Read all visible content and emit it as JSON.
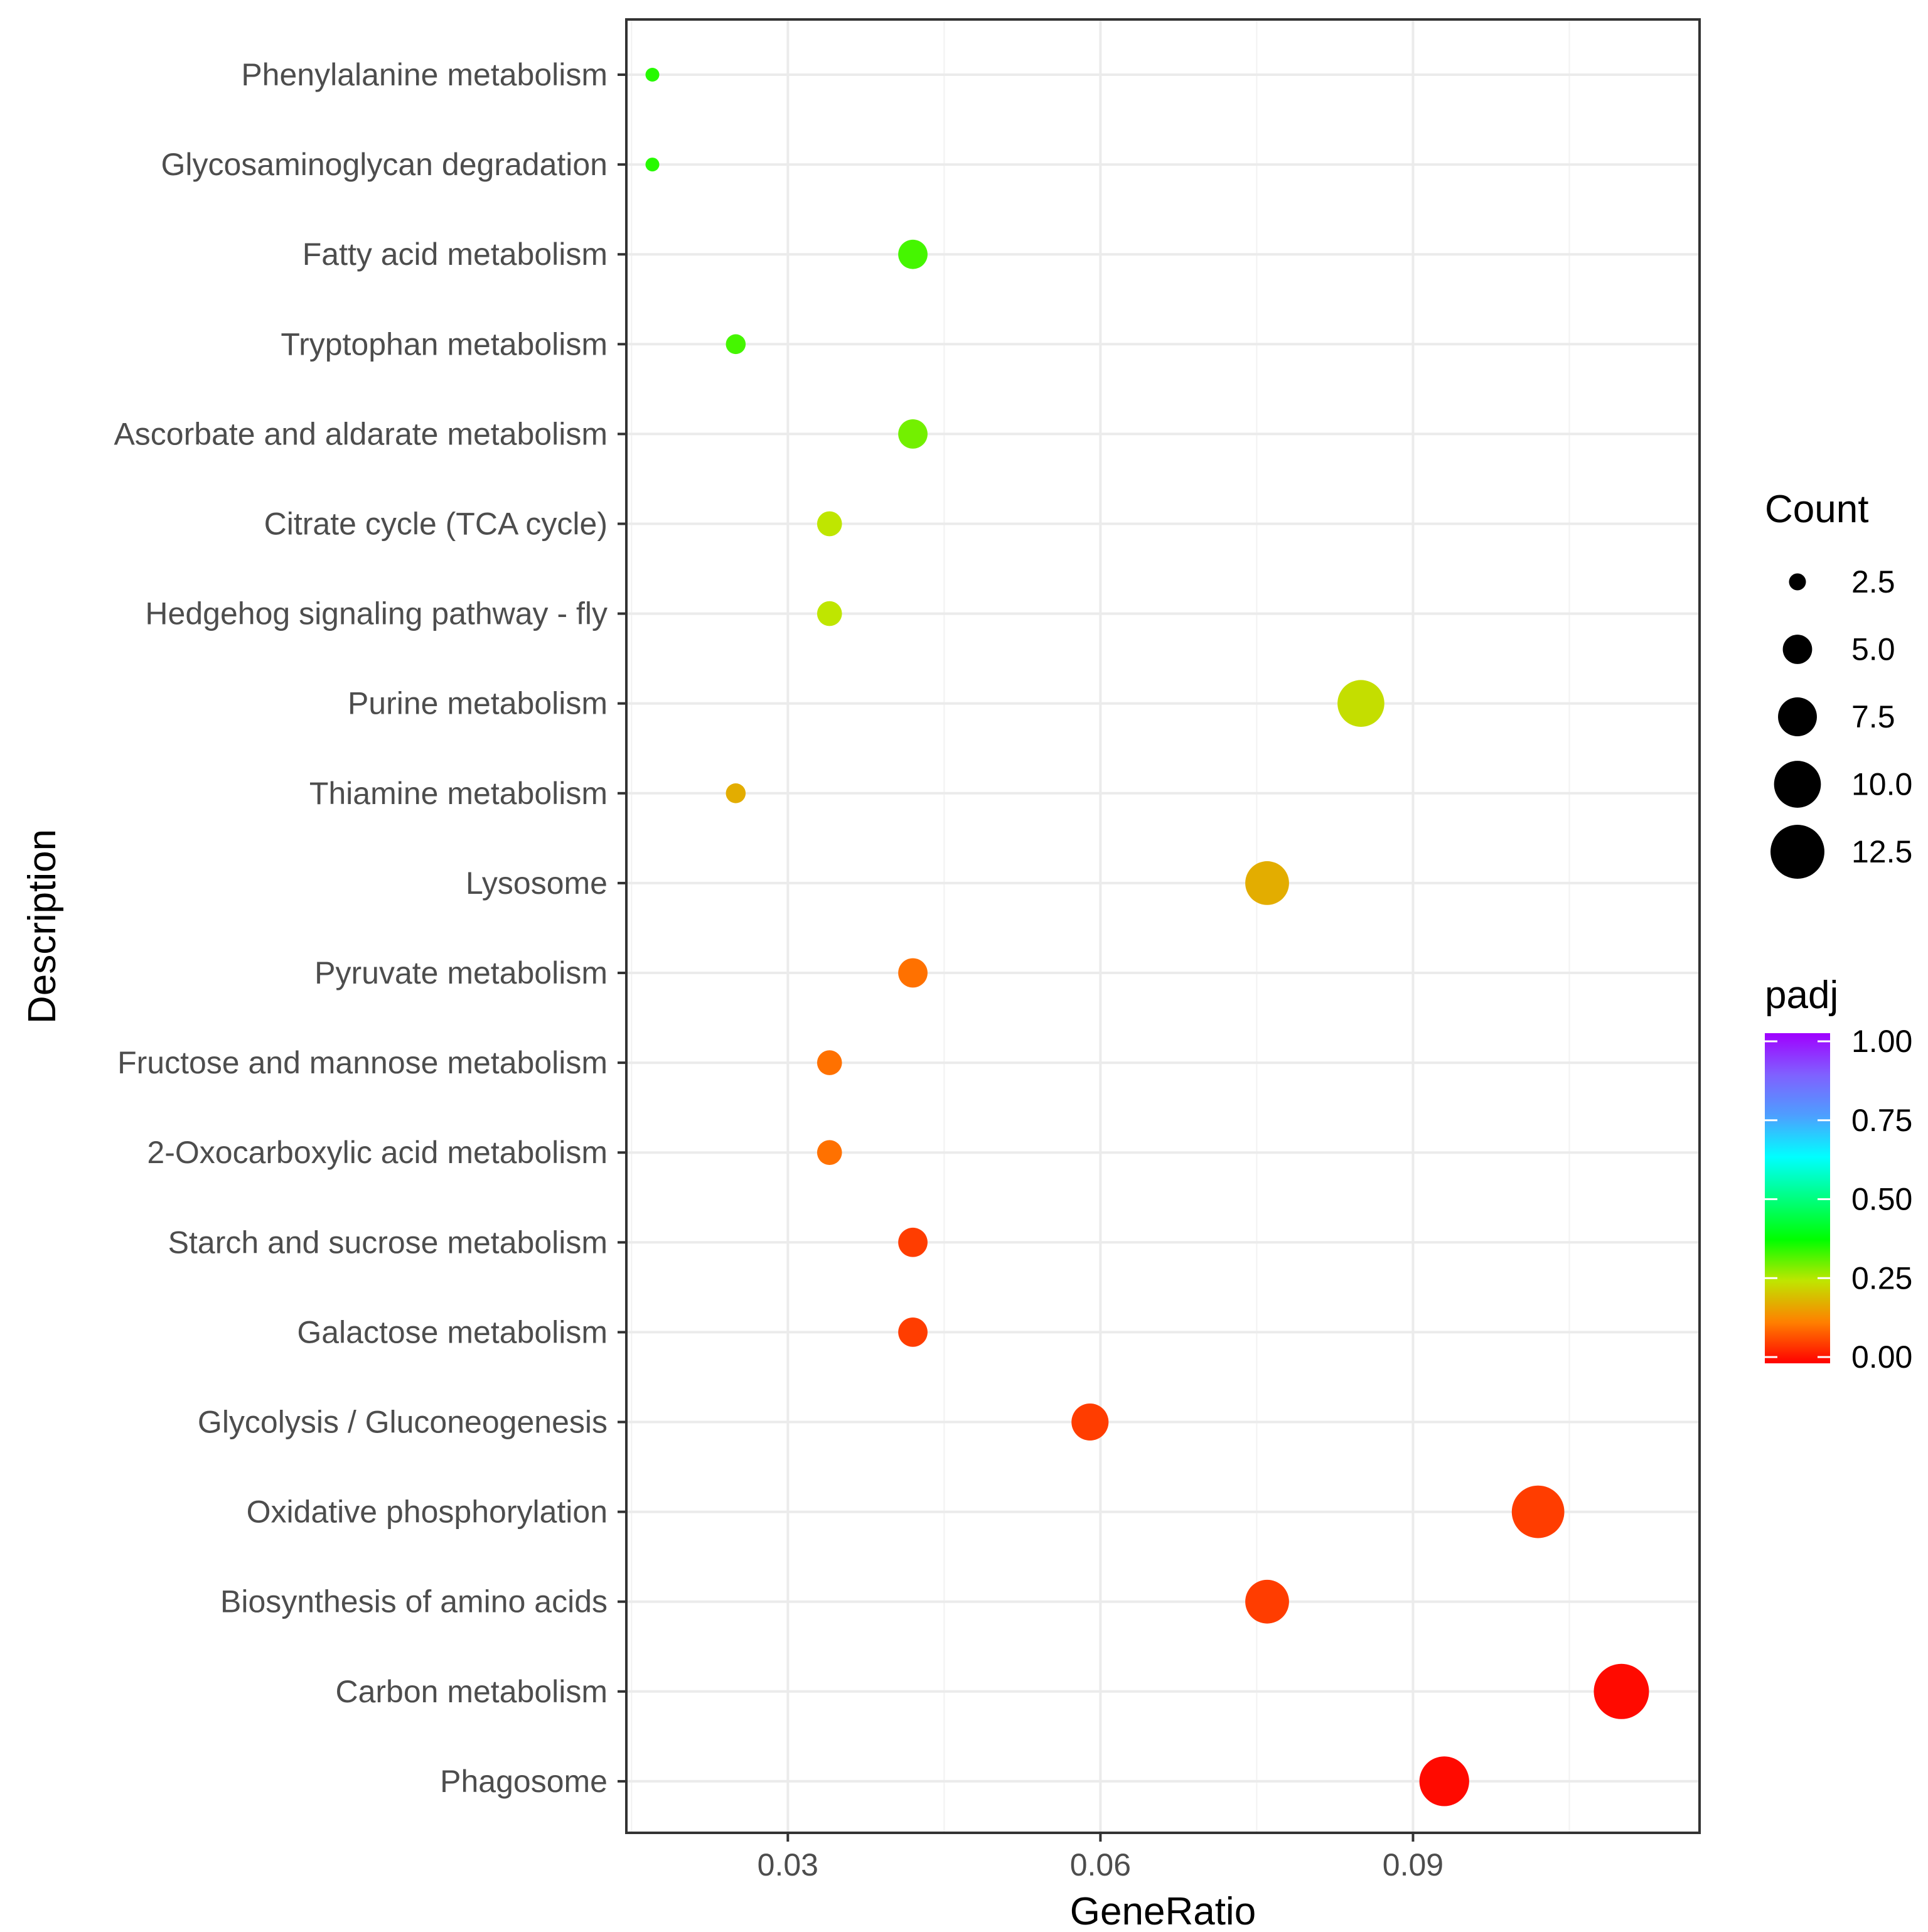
{
  "chart_data": {
    "type": "scatter",
    "title": "",
    "xlabel": "GeneRatio",
    "ylabel": "Description",
    "xlim": [
      0.0145,
      0.1175
    ],
    "xticks": [
      0.03,
      0.06,
      0.09
    ],
    "xtick_labels": [
      "0.03",
      "0.06",
      "0.09"
    ],
    "grid": true,
    "categories": [
      "Phenylalanine metabolism",
      "Glycosaminoglycan degradation",
      "Fatty acid metabolism",
      "Tryptophan metabolism",
      "Ascorbate and aldarate metabolism",
      "Citrate cycle (TCA cycle)",
      "Hedgehog signaling pathway - fly",
      "Purine metabolism",
      "Thiamine metabolism",
      "Lysosome",
      "Pyruvate metabolism",
      "Fructose and mannose metabolism",
      "2-Oxocarboxylic acid metabolism",
      "Starch and sucrose metabolism",
      "Galactose metabolism",
      "Glycolysis / Gluconeogenesis",
      "Oxidative phosphorylation",
      "Biosynthesis of amino acids",
      "Carbon metabolism",
      "Phagosome"
    ],
    "points": [
      {
        "description": "Phenylalanine metabolism",
        "gene_ratio": 0.017,
        "count": 2,
        "padj": 0.35
      },
      {
        "description": "Glycosaminoglycan degradation",
        "gene_ratio": 0.017,
        "count": 2,
        "padj": 0.35
      },
      {
        "description": "Fatty acid metabolism",
        "gene_ratio": 0.042,
        "count": 5,
        "padj": 0.33
      },
      {
        "description": "Tryptophan metabolism",
        "gene_ratio": 0.025,
        "count": 3,
        "padj": 0.33
      },
      {
        "description": "Ascorbate and aldarate metabolism",
        "gene_ratio": 0.042,
        "count": 5,
        "padj": 0.3
      },
      {
        "description": "Citrate cycle (TCA cycle)",
        "gene_ratio": 0.034,
        "count": 4,
        "padj": 0.25
      },
      {
        "description": "Hedgehog signaling pathway - fly",
        "gene_ratio": 0.034,
        "count": 4,
        "padj": 0.25
      },
      {
        "description": "Purine metabolism",
        "gene_ratio": 0.085,
        "count": 10,
        "padj": 0.24
      },
      {
        "description": "Thiamine metabolism",
        "gene_ratio": 0.025,
        "count": 3,
        "padj": 0.18
      },
      {
        "description": "Lysosome",
        "gene_ratio": 0.076,
        "count": 9,
        "padj": 0.18
      },
      {
        "description": "Pyruvate metabolism",
        "gene_ratio": 0.042,
        "count": 5,
        "padj": 0.11
      },
      {
        "description": "Fructose and mannose metabolism",
        "gene_ratio": 0.034,
        "count": 4,
        "padj": 0.11
      },
      {
        "description": "2-Oxocarboxylic acid metabolism",
        "gene_ratio": 0.034,
        "count": 4,
        "padj": 0.11
      },
      {
        "description": "Starch and sucrose metabolism",
        "gene_ratio": 0.042,
        "count": 5,
        "padj": 0.06
      },
      {
        "description": "Galactose metabolism",
        "gene_ratio": 0.042,
        "count": 5,
        "padj": 0.06
      },
      {
        "description": "Glycolysis / Gluconeogenesis",
        "gene_ratio": 0.059,
        "count": 7,
        "padj": 0.06
      },
      {
        "description": "Oxidative phosphorylation",
        "gene_ratio": 0.102,
        "count": 12,
        "padj": 0.06
      },
      {
        "description": "Biosynthesis of amino acids",
        "gene_ratio": 0.076,
        "count": 9,
        "padj": 0.06
      },
      {
        "description": "Carbon metabolism",
        "gene_ratio": 0.11,
        "count": 13,
        "padj": 0.01
      },
      {
        "description": "Phagosome",
        "gene_ratio": 0.093,
        "count": 11,
        "padj": 0.01
      }
    ],
    "size_legend": {
      "title": "Count",
      "breaks": [
        2.5,
        5.0,
        7.5,
        10.0,
        12.5
      ],
      "labels": [
        "2.5",
        "5.0",
        "7.5",
        "10.0",
        "12.5"
      ]
    },
    "color_legend": {
      "title": "padj",
      "breaks": [
        1.0,
        0.75,
        0.5,
        0.25,
        0.0
      ],
      "labels": [
        "1.00",
        "0.75",
        "0.50",
        "0.25",
        "0.00"
      ],
      "gradient_stops": [
        {
          "value": 0.0,
          "color": "#ff0000"
        },
        {
          "value": 0.125,
          "color": "#ff8000"
        },
        {
          "value": 0.25,
          "color": "#bfe600"
        },
        {
          "value": 0.375,
          "color": "#00ff00"
        },
        {
          "value": 0.5,
          "color": "#00ff80"
        },
        {
          "value": 0.625,
          "color": "#00ffff"
        },
        {
          "value": 0.75,
          "color": "#4d9fff"
        },
        {
          "value": 0.875,
          "color": "#8060ff"
        },
        {
          "value": 1.0,
          "color": "#a000ff"
        }
      ]
    }
  }
}
